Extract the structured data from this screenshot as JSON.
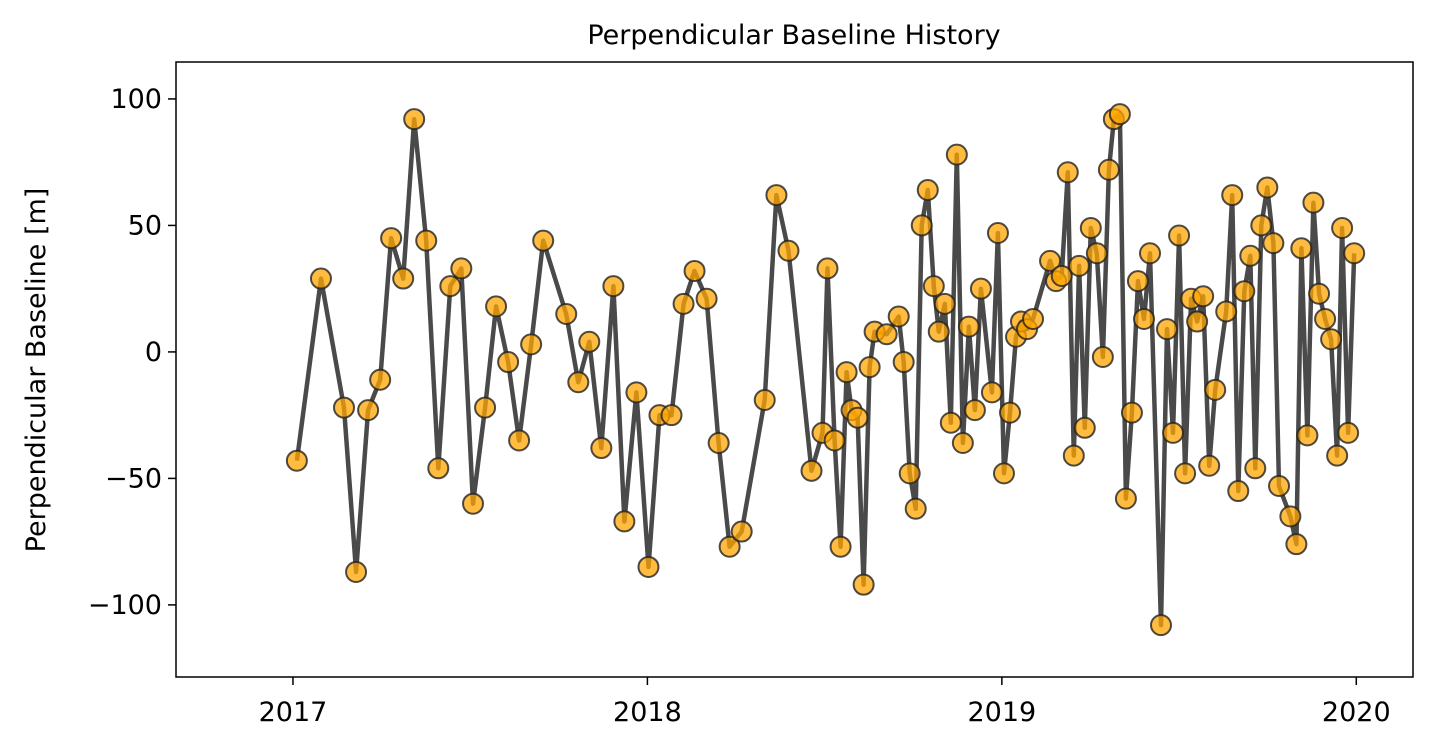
{
  "chart_data": {
    "type": "line",
    "title": "Perpendicular Baseline History",
    "ylabel": "Perpendicular Baseline [m]",
    "x": [
      2017.011,
      2017.079,
      2017.144,
      2017.178,
      2017.212,
      2017.246,
      2017.277,
      2017.311,
      2017.342,
      2017.376,
      2017.41,
      2017.444,
      2017.475,
      2017.508,
      2017.542,
      2017.573,
      2017.607,
      2017.638,
      2017.672,
      2017.706,
      2017.771,
      2017.805,
      2017.836,
      2017.87,
      2017.904,
      2017.935,
      2017.969,
      2018.003,
      2018.034,
      2018.068,
      2018.102,
      2018.133,
      2018.167,
      2018.201,
      2018.232,
      2018.266,
      2018.331,
      2018.364,
      2018.398,
      2018.463,
      2018.494,
      2018.508,
      2018.528,
      2018.545,
      2018.562,
      2018.576,
      2018.593,
      2018.61,
      2018.627,
      2018.641,
      2018.675,
      2018.709,
      2018.723,
      2018.74,
      2018.757,
      2018.774,
      2018.791,
      2018.808,
      2018.822,
      2018.839,
      2018.856,
      2018.873,
      2018.89,
      2018.907,
      2018.924,
      2018.941,
      2018.972,
      2018.989,
      2019.006,
      2019.023,
      2019.04,
      2019.054,
      2019.071,
      2019.088,
      2019.136,
      2019.153,
      2019.169,
      2019.186,
      2019.203,
      2019.218,
      2019.234,
      2019.251,
      2019.268,
      2019.285,
      2019.302,
      2019.316,
      2019.333,
      2019.35,
      2019.367,
      2019.384,
      2019.401,
      2019.418,
      2019.449,
      2019.466,
      2019.483,
      2019.5,
      2019.517,
      2019.534,
      2019.551,
      2019.568,
      2019.585,
      2019.602,
      2019.633,
      2019.65,
      2019.667,
      2019.684,
      2019.701,
      2019.715,
      2019.732,
      2019.749,
      2019.766,
      2019.782,
      2019.814,
      2019.831,
      2019.845,
      2019.862,
      2019.879,
      2019.895,
      2019.912,
      2019.929,
      2019.946,
      2019.96,
      2019.977,
      2019.994
    ],
    "values": [
      -43,
      29,
      -22,
      -87,
      -23,
      -11,
      45,
      29,
      92,
      44,
      -46,
      26,
      33,
      -60,
      -22,
      18,
      -4,
      -35,
      3,
      44,
      15,
      -12,
      4,
      -38,
      26,
      -67,
      -16,
      -85,
      -25,
      -25,
      19,
      32,
      21,
      -36,
      -77,
      -71,
      -19,
      62,
      40,
      -47,
      -32,
      33,
      -35,
      -77,
      -8,
      -23,
      -26,
      -92,
      -6,
      8,
      7,
      14,
      -4,
      -48,
      -62,
      50,
      64,
      26,
      8,
      19,
      -28,
      78,
      -36,
      10,
      -23,
      25,
      -16,
      47,
      -48,
      -24,
      6,
      12,
      9,
      13,
      36,
      28,
      30,
      71,
      -41,
      34,
      -30,
      49,
      39,
      -2,
      72,
      92,
      94,
      -58,
      -24,
      28,
      13,
      39,
      -108,
      9,
      -32,
      46,
      -48,
      21,
      12,
      22,
      -45,
      -15,
      16,
      62,
      -55,
      24,
      38,
      -46,
      50,
      65,
      43,
      -53,
      -65,
      -76,
      41,
      -33,
      59,
      23,
      13,
      5,
      -41,
      49,
      -32,
      39
    ],
    "color": "orange",
    "line_color": "#4a4a4a",
    "xlim": [
      2016.67,
      2020.16
    ],
    "xticks": [
      2017,
      2018,
      2019,
      2020
    ],
    "ylim": [
      -128.5,
      114.6
    ],
    "yticks": [
      {
        "value": -100,
        "label": "−100"
      },
      {
        "value": -50,
        "label": "−50"
      },
      0,
      50,
      100
    ]
  }
}
